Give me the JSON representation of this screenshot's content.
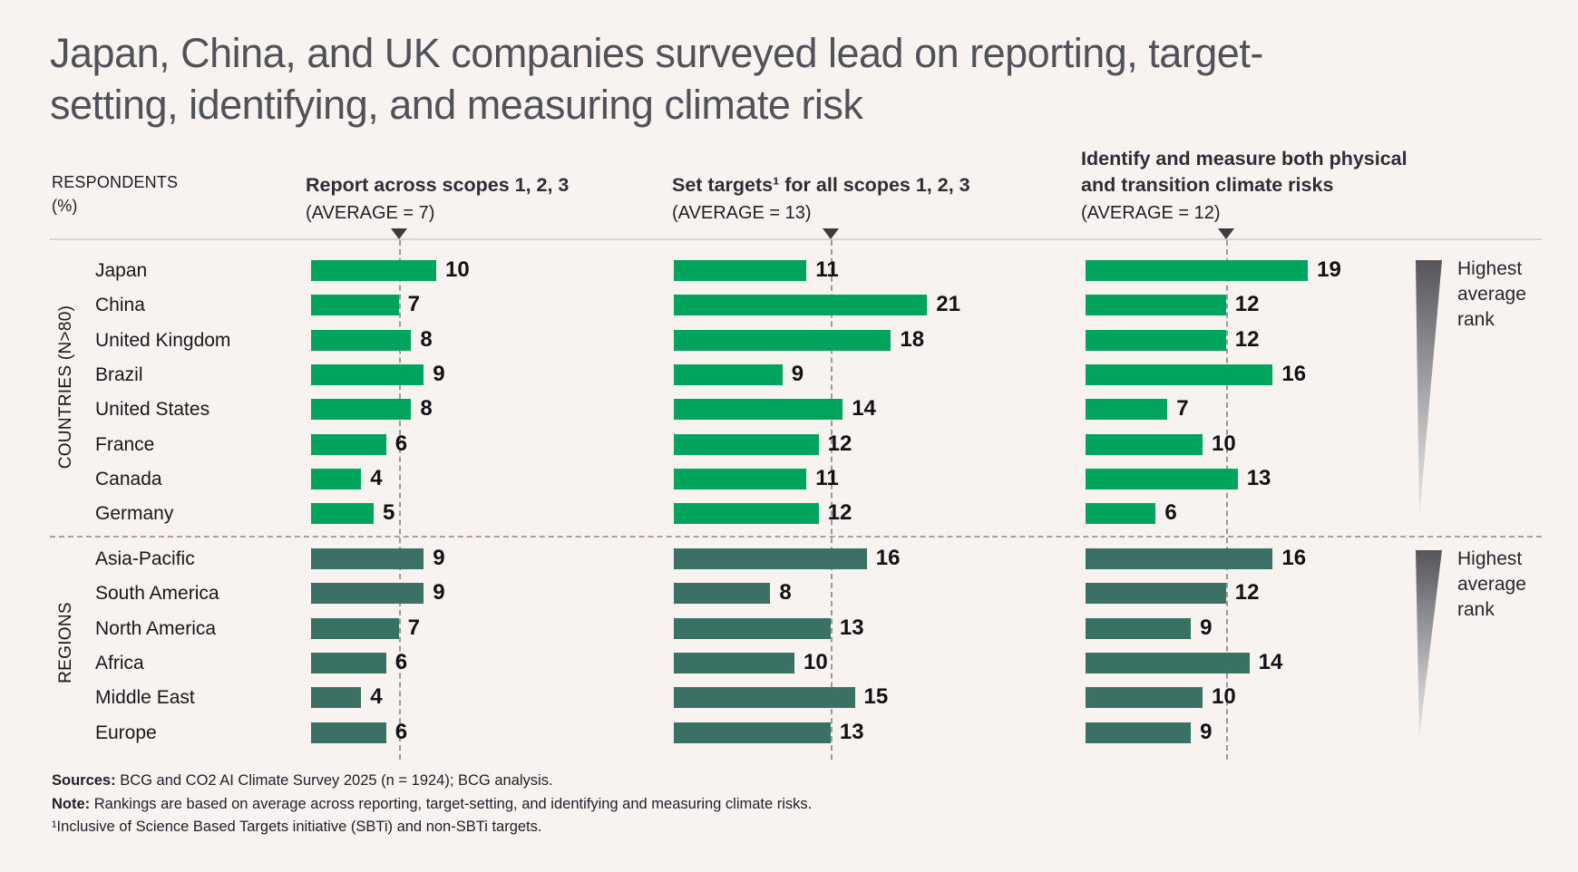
{
  "title": {
    "line1": "Japan, China, and UK companies surveyed lead on reporting, target-",
    "line2": "setting, identifying, and measuring climate risk"
  },
  "axis_label": {
    "line1": "RESPONDENTS",
    "line2": "(%)"
  },
  "legend": [
    {
      "label": "Highest average rank"
    },
    {
      "label": "Highest average rank"
    }
  ],
  "colors": {
    "country_bar": "#00a45d",
    "region_bar": "#3b7165",
    "dashed_line": "#9a9a9a",
    "background": "#f8f3f0"
  },
  "chart_data": {
    "type": "bar",
    "orientation": "horizontal",
    "units": "% of respondents",
    "groups": [
      {
        "name": "COUNTRIES (N>80)",
        "categories": [
          "Japan",
          "China",
          "United Kingdom",
          "Brazil",
          "United States",
          "France",
          "Canada",
          "Germany"
        ]
      },
      {
        "name": "REGIONS",
        "categories": [
          "Asia-Pacific",
          "South America",
          "North America",
          "Africa",
          "Middle East",
          "Europe"
        ]
      }
    ],
    "columns": [
      {
        "title": "Report across scopes 1, 2, 3",
        "average_label": "(AVERAGE = 7)",
        "average": 7,
        "countries_values": [
          10,
          7,
          8,
          9,
          8,
          6,
          4,
          5
        ],
        "regions_values": [
          9,
          9,
          7,
          6,
          4,
          6
        ]
      },
      {
        "title": "Set targets¹ for all scopes 1, 2, 3",
        "average_label": "(AVERAGE = 13)",
        "average": 13,
        "countries_values": [
          11,
          21,
          18,
          9,
          14,
          12,
          11,
          12
        ],
        "regions_values": [
          16,
          8,
          13,
          10,
          15,
          13
        ]
      },
      {
        "title_line1": "Identify and measure both physical",
        "title_line2": "and transition climate risks",
        "average_label": "(AVERAGE = 12)",
        "average": 12,
        "countries_values": [
          19,
          12,
          12,
          16,
          7,
          10,
          13,
          6
        ],
        "regions_values": [
          16,
          12,
          9,
          14,
          10,
          9
        ]
      }
    ]
  },
  "footer": {
    "lines": [
      {
        "bold": "Sources:",
        "rest": " BCG and CO2 AI Climate Survey 2025 (n = 1924); BCG analysis."
      },
      {
        "bold": "Note:",
        "rest": " Rankings are based on average across reporting, target-setting, and identifying and measuring climate risks."
      },
      {
        "bold": "",
        "rest": "¹Inclusive of Science Based Targets initiative (SBTi) and non-SBTi targets."
      }
    ]
  }
}
